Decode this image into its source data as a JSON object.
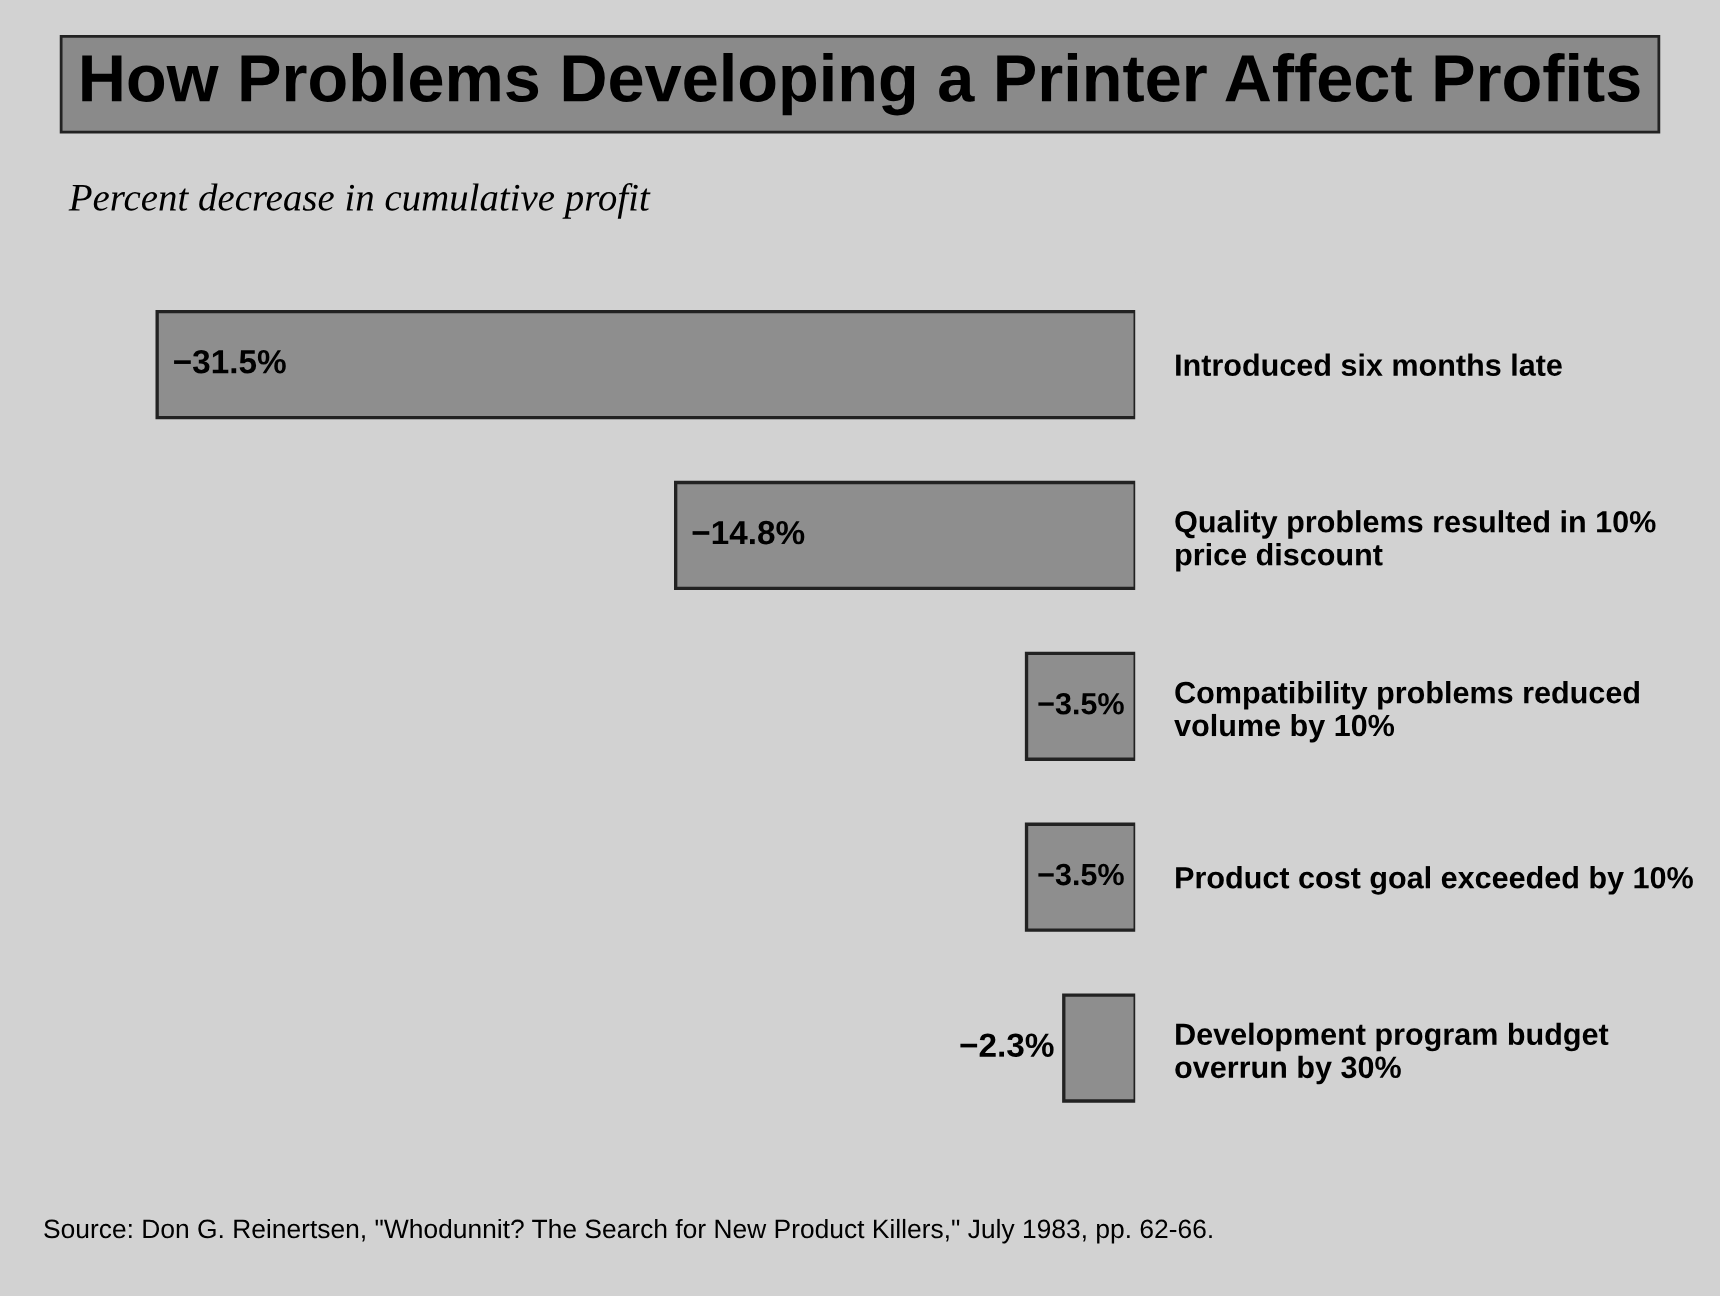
{
  "chart_data": {
    "type": "bar",
    "orientation": "horizontal",
    "title": "How Problems Developing a Printer Affect Profits",
    "subtitle": "Percent decrease in cumulative profit",
    "categories": [
      "Introduced six months late",
      "Quality problems resulted in 10% price discount",
      "Compatibility problems reduced volume by 10%",
      "Product cost goal exceeded by 10%",
      "Development program budget overrun by 30%"
    ],
    "values": [
      -31.5,
      -14.8,
      -3.5,
      -3.5,
      -2.3
    ],
    "value_labels": [
      "−31.5%",
      "−14.8%",
      "−3.5%",
      "−3.5%",
      "−2.3%"
    ],
    "color": "#8e8e8e",
    "annotations": [
      "Source: Don G. Reinertsen, \"Whodunnit? The Search for New Product Killers,\" July 1983, pp. 62-66."
    ],
    "grid": false,
    "legend": false
  }
}
